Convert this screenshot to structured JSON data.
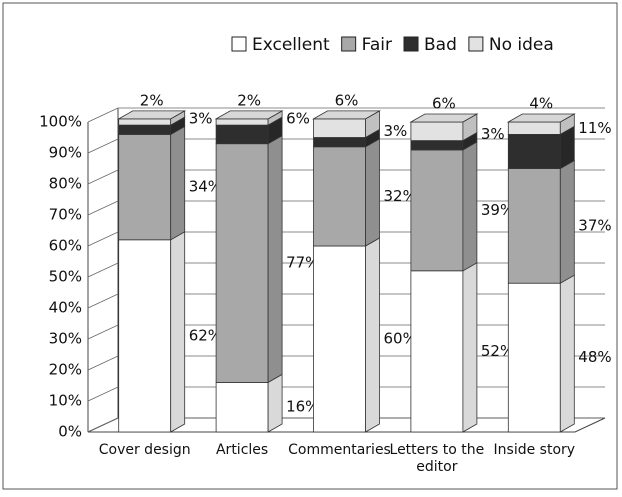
{
  "chart_data": {
    "type": "bar3d_stacked",
    "categories": [
      "Cover design",
      "Articles",
      "Commentaries",
      "Letters to the editor",
      "Inside story"
    ],
    "series": [
      {
        "name": "Excellent",
        "color": "#ffffff",
        "values": [
          62,
          16,
          60,
          52,
          48
        ],
        "value_labels": [
          "62%",
          "16%",
          "60%",
          "52%",
          "48%"
        ]
      },
      {
        "name": "Fair",
        "color": "#a8a8a8",
        "values": [
          34,
          77,
          32,
          39,
          37
        ],
        "value_labels": [
          "34%",
          "77%",
          "32%",
          "39%",
          "37%"
        ]
      },
      {
        "name": "Bad",
        "color": "#2e2e2e",
        "values": [
          3,
          6,
          3,
          3,
          11
        ],
        "value_labels": [
          "3%",
          "6%",
          "3%",
          "3%",
          "11%"
        ]
      },
      {
        "name": "No idea",
        "color": "#e2e2e2",
        "values": [
          2,
          2,
          6,
          6,
          4
        ],
        "value_labels": [
          "2%",
          "2%",
          "6%",
          "6%",
          "4%"
        ]
      }
    ],
    "ylim": [
      0,
      100
    ],
    "yticks": [
      {
        "value": 0,
        "label": "0%"
      },
      {
        "value": 10,
        "label": "10%"
      },
      {
        "value": 20,
        "label": "20%"
      },
      {
        "value": 30,
        "label": "30%"
      },
      {
        "value": 40,
        "label": "40%"
      },
      {
        "value": 50,
        "label": "50%"
      },
      {
        "value": 60,
        "label": "60%"
      },
      {
        "value": 70,
        "label": "70%"
      },
      {
        "value": 80,
        "label": "80%"
      },
      {
        "value": 90,
        "label": "90%"
      },
      {
        "value": 100,
        "label": "100%"
      }
    ],
    "grid": true,
    "legend": "top"
  }
}
